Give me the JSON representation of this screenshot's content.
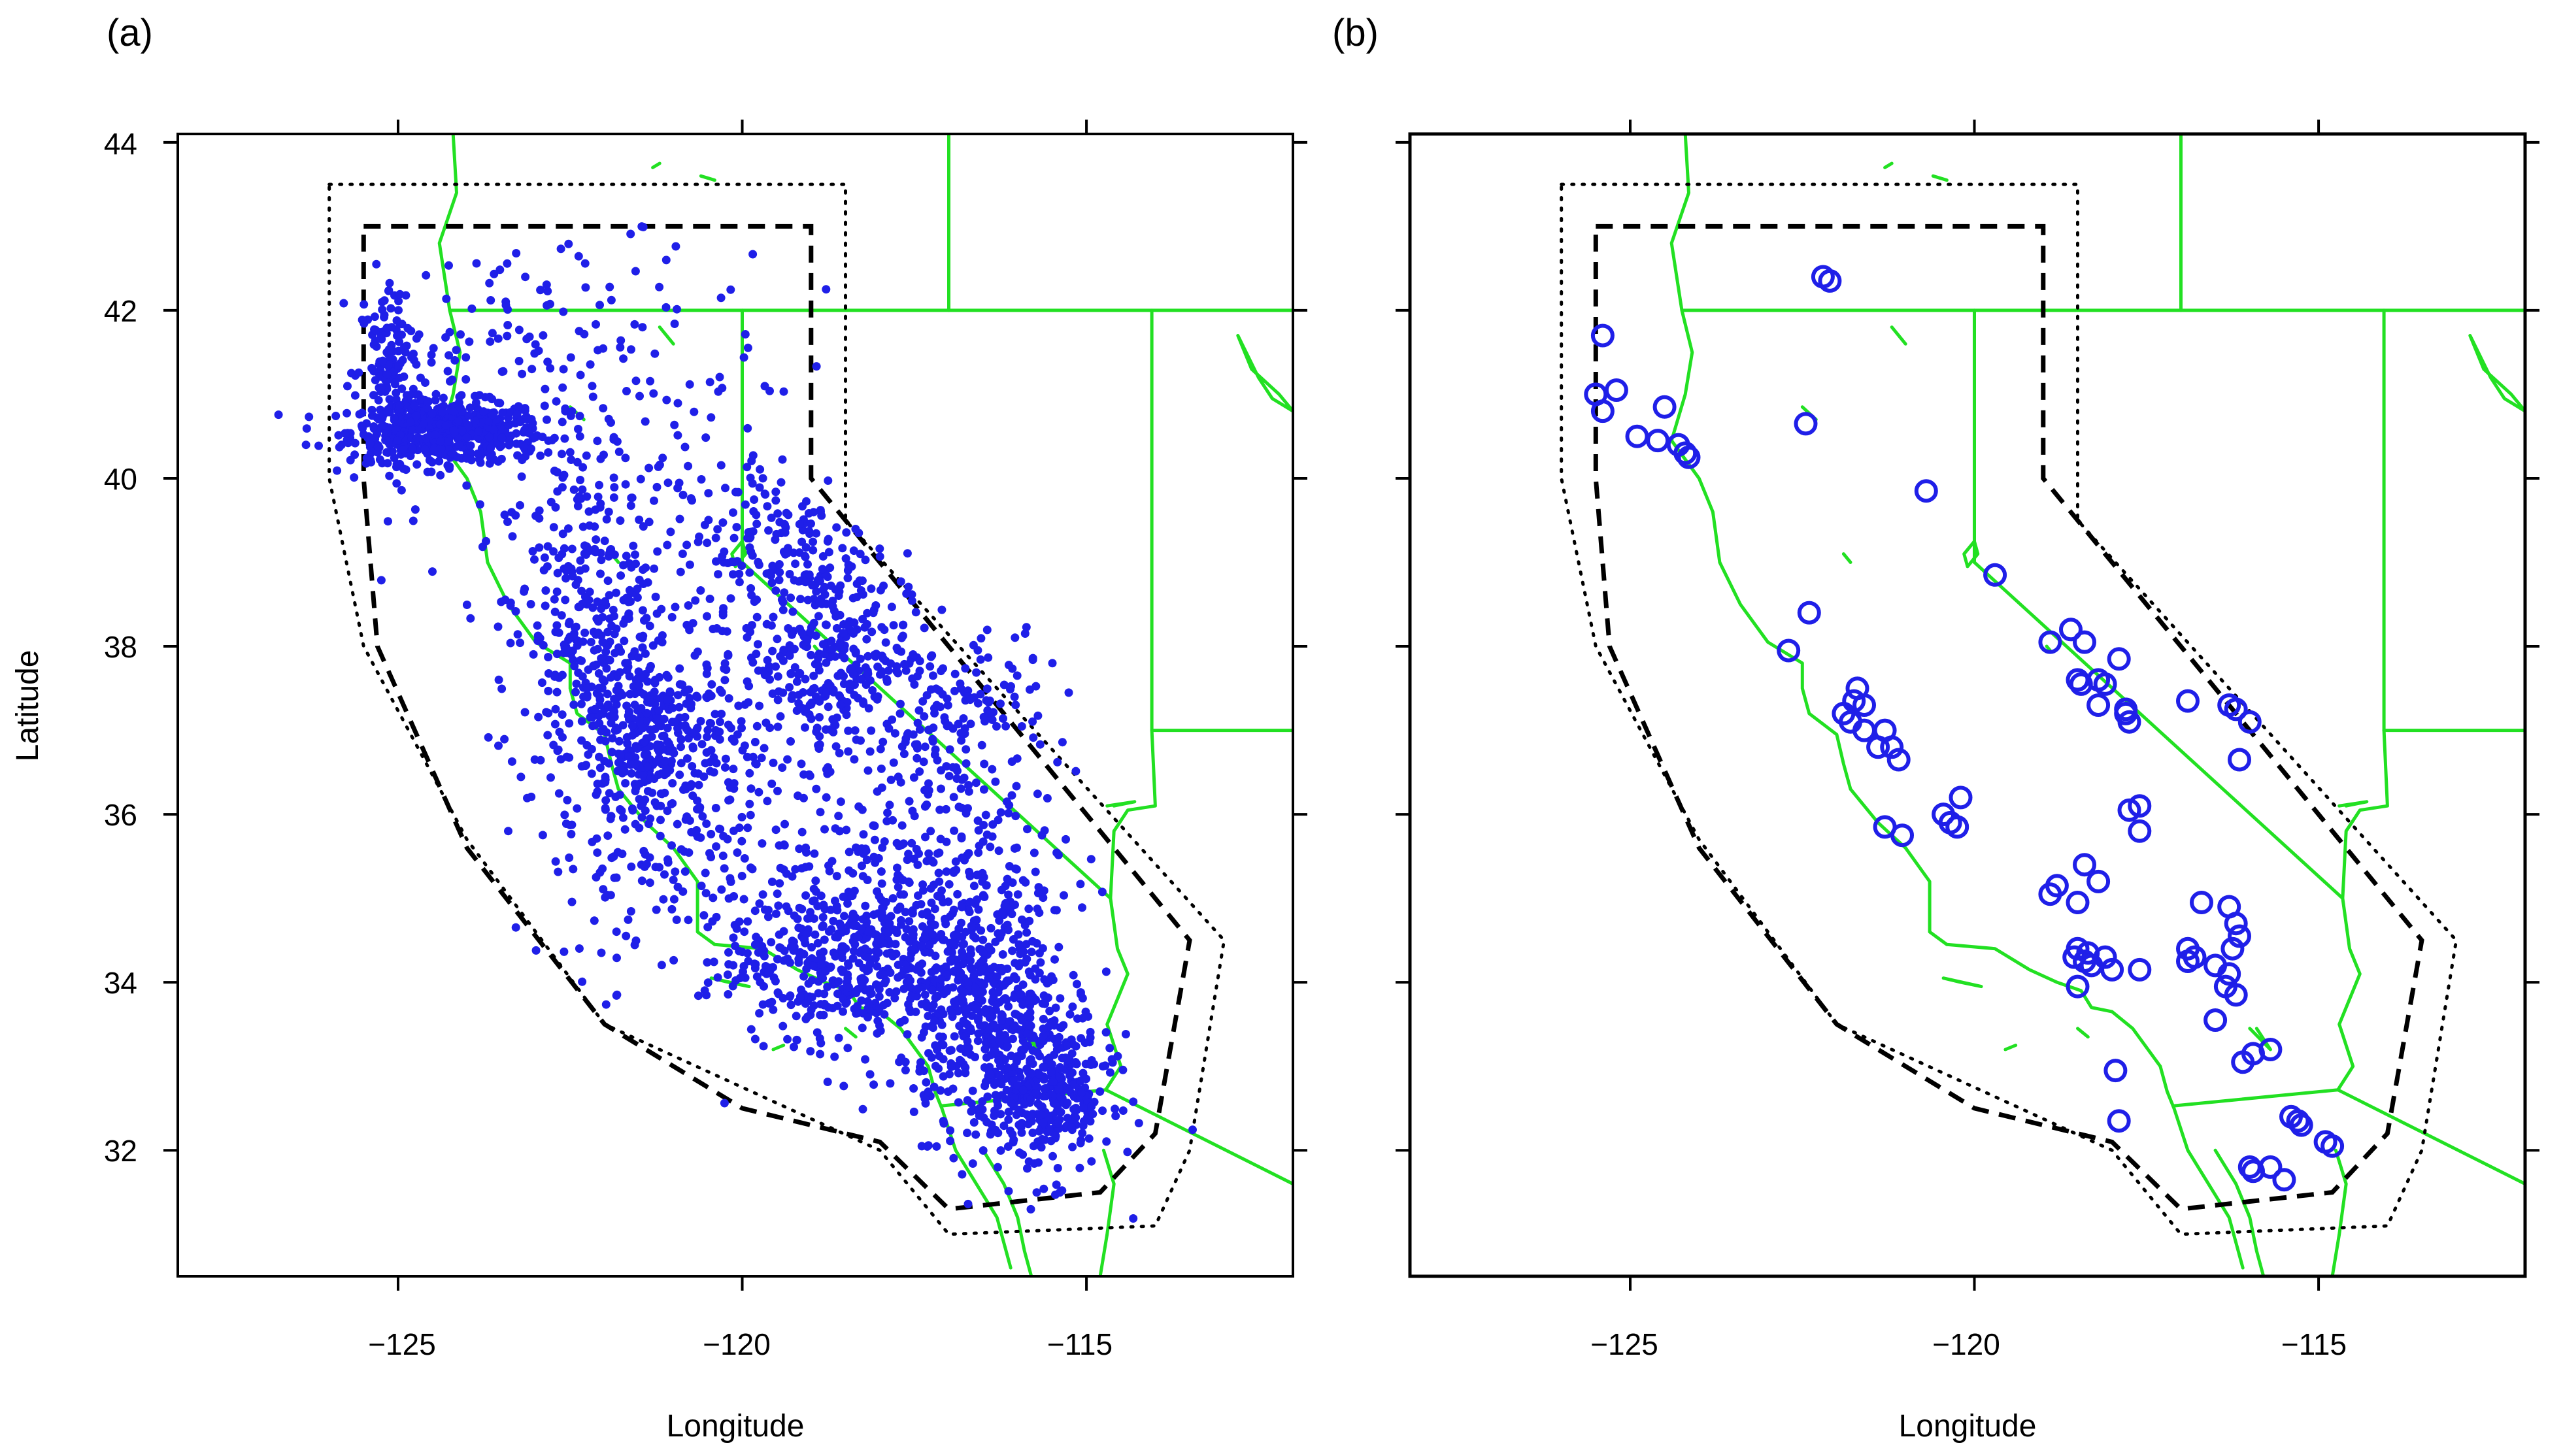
{
  "figure": {
    "panels": [
      {
        "id": "a",
        "label": "(a)",
        "xlabel": "Longitude",
        "ylabel": "Latitude",
        "x_ticks": [
          "−125",
          "−120",
          "−115"
        ],
        "y_ticks": [
          "44",
          "42",
          "40",
          "38",
          "36",
          "34",
          "32"
        ],
        "marker": "filled-dot",
        "marker_color": "#1f1fe8",
        "description_of_points": "dense earthquake epicenter catalog"
      },
      {
        "id": "b",
        "label": "(b)",
        "xlabel": "Longitude",
        "ylabel": "",
        "x_ticks": [
          "−125",
          "−120",
          "−115"
        ],
        "y_ticks": [],
        "marker": "open-circle",
        "marker_color": "#1f1fe8"
      }
    ],
    "colors": {
      "coastline_and_borders": "#22e022",
      "points": "#1f1fe8",
      "outer_region": "#000000",
      "inner_region": "#000000"
    }
  },
  "chart_data": [
    {
      "type": "scatter",
      "title": "",
      "xlabel": "Longitude",
      "ylabel": "Latitude",
      "xlim": [
        -128.2,
        -112
      ],
      "ylim": [
        30.5,
        44.1
      ],
      "grid": false,
      "overlays": {
        "coastline_borders": "green lines",
        "outer_polygon_dotted": [
          [
            -126,
            43.5
          ],
          [
            -118.5,
            43.5
          ],
          [
            -118.5,
            39.5
          ],
          [
            -113,
            34.5
          ],
          [
            -113.5,
            32
          ],
          [
            -114,
            31.1
          ],
          [
            -117,
            31
          ],
          [
            -118,
            32
          ],
          [
            -122,
            33.5
          ],
          [
            -124,
            35.7
          ],
          [
            -125.5,
            38
          ],
          [
            -126,
            40
          ],
          [
            -126,
            43.5
          ]
        ],
        "inner_polygon_dashed": [
          [
            -125.5,
            43
          ],
          [
            -119,
            43
          ],
          [
            -119,
            40
          ],
          [
            -113.5,
            34.5
          ],
          [
            -114,
            32.2
          ],
          [
            -114.8,
            31.5
          ],
          [
            -117,
            31.3
          ],
          [
            -118,
            32.1
          ],
          [
            -120,
            32.5
          ],
          [
            -122,
            33.5
          ],
          [
            -124,
            35.6
          ],
          [
            -125.3,
            38
          ],
          [
            -125.5,
            40
          ],
          [
            -125.5,
            43
          ]
        ]
      },
      "series": [
        {
          "marker": "filled-dot",
          "clusters": [
            {
              "lon": -124.3,
              "lat": 40.55,
              "sd_lon": 0.7,
              "sd_lat": 0.18,
              "n": 520
            },
            {
              "lon": -125.1,
              "lat": 41.2,
              "sd_lon": 0.25,
              "sd_lat": 0.6,
              "n": 160
            },
            {
              "lon": -122.2,
              "lat": 38.1,
              "sd_lon": 0.6,
              "sd_lat": 1.0,
              "n": 360
            },
            {
              "lon": -121.2,
              "lat": 36.8,
              "sd_lon": 0.6,
              "sd_lat": 0.6,
              "n": 340
            },
            {
              "lon": -118.8,
              "lat": 37.9,
              "sd_lon": 0.6,
              "sd_lat": 0.6,
              "n": 320
            },
            {
              "lon": -119.5,
              "lat": 39.2,
              "sd_lon": 0.7,
              "sd_lat": 0.6,
              "n": 160
            },
            {
              "lon": -117.3,
              "lat": 35.5,
              "sd_lon": 0.9,
              "sd_lat": 1.0,
              "n": 300
            },
            {
              "lon": -118.6,
              "lat": 34.3,
              "sd_lon": 0.8,
              "sd_lat": 0.5,
              "n": 420
            },
            {
              "lon": -116.5,
              "lat": 33.7,
              "sd_lon": 0.6,
              "sd_lat": 0.7,
              "n": 500
            },
            {
              "lon": -115.6,
              "lat": 32.7,
              "sd_lon": 0.5,
              "sd_lat": 0.5,
              "n": 380
            },
            {
              "lon": -116.8,
              "lat": 37.2,
              "sd_lon": 0.6,
              "sd_lat": 0.5,
              "n": 120
            },
            {
              "lon": -122.5,
              "lat": 41.0,
              "sd_lon": 1.5,
              "sd_lat": 0.9,
              "n": 240
            },
            {
              "lon": -120.5,
              "lat": 35.5,
              "sd_lon": 1.2,
              "sd_lat": 1.0,
              "n": 200
            }
          ]
        }
      ]
    },
    {
      "type": "scatter",
      "title": "",
      "xlabel": "Longitude",
      "ylabel": "",
      "xlim": [
        -128.2,
        -112
      ],
      "ylim": [
        30.5,
        44.1
      ],
      "grid": false,
      "series": [
        {
          "marker": "open-circle",
          "points": [
            [
              -122.2,
              42.4
            ],
            [
              -122.1,
              42.35
            ],
            [
              -125.4,
              41.7
            ],
            [
              -125.5,
              41.0
            ],
            [
              -125.2,
              41.05
            ],
            [
              -125.4,
              40.8
            ],
            [
              -124.5,
              40.85
            ],
            [
              -124.9,
              40.5
            ],
            [
              -124.6,
              40.45
            ],
            [
              -124.3,
              40.4
            ],
            [
              -124.2,
              40.3
            ],
            [
              -124.15,
              40.25
            ],
            [
              -122.45,
              40.65
            ],
            [
              -120.7,
              39.85
            ],
            [
              -122.4,
              38.4
            ],
            [
              -122.7,
              37.95
            ],
            [
              -121.7,
              37.5
            ],
            [
              -121.75,
              37.35
            ],
            [
              -121.6,
              37.3
            ],
            [
              -121.9,
              37.2
            ],
            [
              -121.8,
              37.1
            ],
            [
              -121.6,
              37.0
            ],
            [
              -121.3,
              37.0
            ],
            [
              -121.4,
              36.8
            ],
            [
              -121.2,
              36.8
            ],
            [
              -121.1,
              36.65
            ],
            [
              -121.3,
              35.85
            ],
            [
              -121.05,
              35.75
            ],
            [
              -120.45,
              36.0
            ],
            [
              -120.35,
              35.9
            ],
            [
              -120.25,
              35.85
            ],
            [
              -120.2,
              36.2
            ],
            [
              -119.7,
              38.85
            ],
            [
              -118.9,
              38.05
            ],
            [
              -118.6,
              38.2
            ],
            [
              -118.4,
              38.05
            ],
            [
              -117.9,
              37.85
            ],
            [
              -118.5,
              37.6
            ],
            [
              -118.45,
              37.55
            ],
            [
              -118.2,
              37.6
            ],
            [
              -118.1,
              37.55
            ],
            [
              -118.2,
              37.3
            ],
            [
              -117.8,
              37.25
            ],
            [
              -117.75,
              37.1
            ],
            [
              -117.8,
              37.2
            ],
            [
              -116.9,
              37.35
            ],
            [
              -116.3,
              37.3
            ],
            [
              -116.2,
              37.25
            ],
            [
              -116.0,
              37.1
            ],
            [
              -116.15,
              36.65
            ],
            [
              -117.75,
              36.05
            ],
            [
              -117.6,
              36.1
            ],
            [
              -117.6,
              35.8
            ],
            [
              -118.4,
              35.4
            ],
            [
              -118.2,
              35.2
            ],
            [
              -118.9,
              35.05
            ],
            [
              -118.8,
              35.15
            ],
            [
              -118.5,
              34.95
            ],
            [
              -116.7,
              34.95
            ],
            [
              -116.3,
              34.9
            ],
            [
              -116.2,
              34.7
            ],
            [
              -116.15,
              34.55
            ],
            [
              -116.25,
              34.4
            ],
            [
              -116.9,
              34.4
            ],
            [
              -116.8,
              34.3
            ],
            [
              -116.9,
              34.25
            ],
            [
              -116.5,
              34.2
            ],
            [
              -116.3,
              34.1
            ],
            [
              -116.35,
              33.95
            ],
            [
              -116.2,
              33.85
            ],
            [
              -116.5,
              33.55
            ],
            [
              -118.5,
              34.4
            ],
            [
              -118.55,
              34.3
            ],
            [
              -118.4,
              34.25
            ],
            [
              -118.35,
              34.35
            ],
            [
              -118.3,
              34.2
            ],
            [
              -118.1,
              34.3
            ],
            [
              -118.0,
              34.15
            ],
            [
              -117.6,
              34.15
            ],
            [
              -118.5,
              33.95
            ],
            [
              -116.1,
              33.05
            ],
            [
              -115.95,
              33.15
            ],
            [
              -115.7,
              33.2
            ],
            [
              -117.95,
              32.95
            ],
            [
              -117.9,
              32.35
            ],
            [
              -115.3,
              32.35
            ],
            [
              -115.4,
              32.4
            ],
            [
              -115.25,
              32.3
            ],
            [
              -114.9,
              32.1
            ],
            [
              -114.8,
              32.05
            ],
            [
              -116.0,
              31.8
            ],
            [
              -115.95,
              31.75
            ],
            [
              -115.7,
              31.8
            ],
            [
              -115.5,
              31.65
            ]
          ]
        }
      ]
    }
  ]
}
